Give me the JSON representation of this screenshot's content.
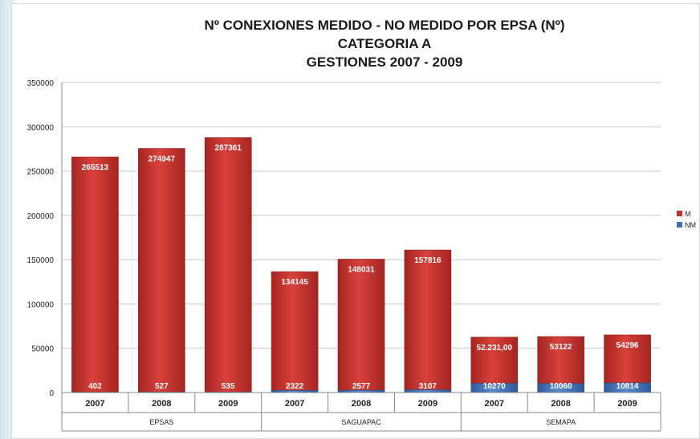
{
  "chart_data": {
    "type": "bar",
    "stacked": true,
    "title": [
      "Nº CONEXIONES MEDIDO - NO MEDIDO POR EPSA  (Nº)",
      "CATEGORIA A",
      "GESTIONES 2007 - 2009"
    ],
    "xlabel": "",
    "ylabel": "",
    "ylim": [
      0,
      350000
    ],
    "yticks": [
      "0",
      "50000",
      "100000",
      "150000",
      "200000",
      "250000",
      "300000",
      "350000"
    ],
    "grid": true,
    "legend_position": "right",
    "categories": [
      "2007",
      "2008",
      "2009",
      "2007",
      "2008",
      "2009",
      "2007",
      "2008",
      "2009"
    ],
    "groups": [
      {
        "label": "EPSAS",
        "count": 3
      },
      {
        "label": "SAGUAPAC",
        "count": 3
      },
      {
        "label": "SEMAPA",
        "count": 3
      }
    ],
    "series": [
      {
        "name": "NM",
        "color": "#3f6fb5",
        "values": [
          402,
          527,
          535,
          2322,
          2577,
          3107,
          10270,
          10060,
          10814
        ],
        "labels": [
          "402",
          "527",
          "535",
          "2322",
          "2577",
          "3107",
          "10270",
          "10060",
          "10814"
        ]
      },
      {
        "name": "M",
        "color": "#c0302c",
        "values": [
          265513,
          274947,
          287361,
          134145,
          148031,
          157816,
          52231,
          53122,
          54296
        ],
        "labels": [
          "265513",
          "274947",
          "287361",
          "134145",
          "148031",
          "157816",
          "52.231,00",
          "53122",
          "54296"
        ]
      }
    ]
  }
}
